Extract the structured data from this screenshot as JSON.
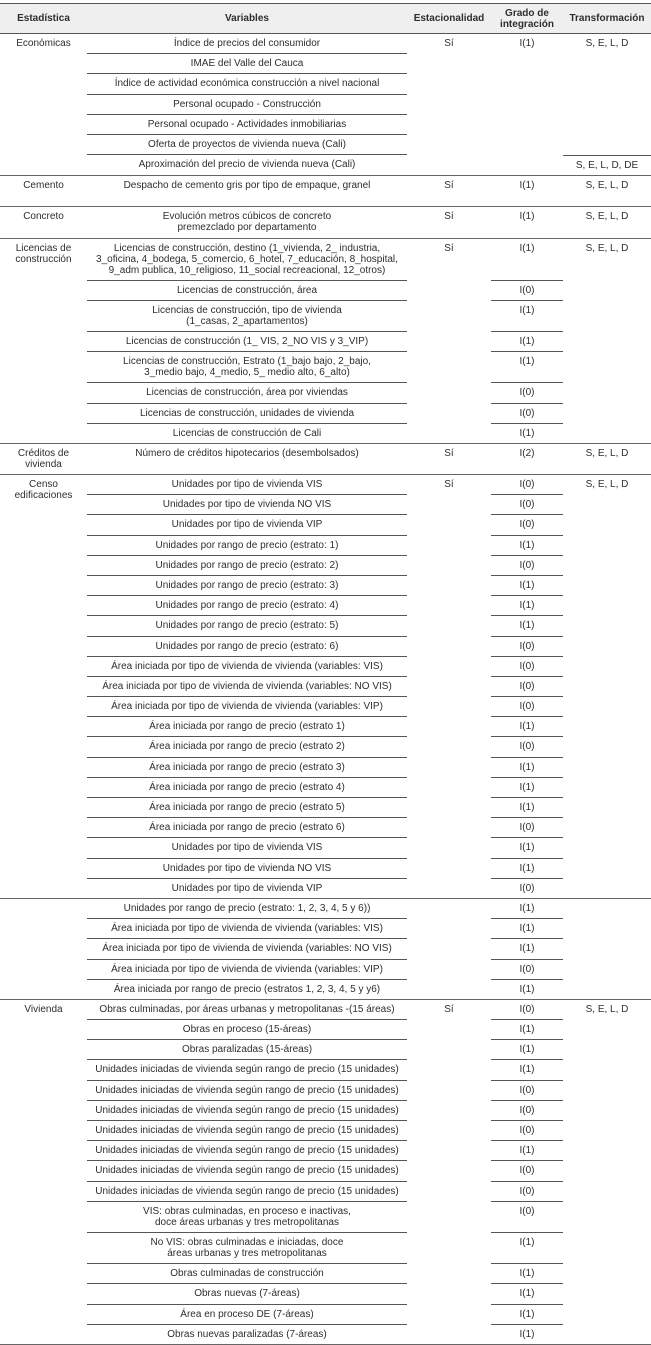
{
  "header": {
    "estadistica": "Estadística",
    "variables": "Variables",
    "estacionalidad": "Estacionalidad",
    "integracion": "Grado de\nintegración",
    "transformacion": "Transformación"
  },
  "groups": [
    {
      "label": "Económicas",
      "seasonality": "Sí",
      "rows": [
        {
          "variable": "Índice de precios del consumidor",
          "integration": "I(1)",
          "transformation": "S, E, L, D"
        },
        {
          "variable": "IMAE del Valle del Cauca"
        },
        {
          "variable": "Índice de actividad económica construcción a nivel nacional"
        },
        {
          "variable": "Personal ocupado - Construcción"
        },
        {
          "variable": "Personal ocupado - Actividades inmobiliarias"
        },
        {
          "variable": "Oferta de proyectos de vivienda nueva (Cali)"
        },
        {
          "variable": "Aproximación del precio de vivienda nueva (Cali)",
          "transformation": "S, E, L, D, DE"
        }
      ]
    },
    {
      "label": "Cemento",
      "seasonality": "Sí",
      "rows": [
        {
          "variable": "Despacho de cemento gris por tipo de empaque, granel",
          "integration": "I(1)",
          "transformation": "S, E, L, D"
        }
      ]
    },
    {
      "label": "Concreto",
      "seasonality": "Sí",
      "rows": [
        {
          "variable": "Evolución metros cúbicos de concreto\npremezclado por departamento",
          "integration": "I(1)",
          "transformation": "S, E, L, D"
        }
      ]
    },
    {
      "label": "Licencias de\nconstrucción",
      "seasonality": "Sí",
      "rows": [
        {
          "variable": "Licencias de construcción, destino (1_vivienda, 2_ industria,\n3_oficina, 4_bodega, 5_comercio, 6_hotel, 7_educación, 8_hospital,\n9_adm publica, 10_religioso, 11_social recreacional, 12_otros)",
          "integration": "I(1)",
          "transformation": "S, E, L, D"
        },
        {
          "variable": "Licencias de construcción, área",
          "integration": "I(0)"
        },
        {
          "variable": "Licencias de construcción, tipo de vivienda\n(1_casas, 2_apartamentos)",
          "integration": "I(1)"
        },
        {
          "variable": "Licencias de construcción (1_ VIS, 2_NO VIS y 3_VIP)",
          "integration": "I(1)"
        },
        {
          "variable": "Licencias de construcción, Estrato (1_bajo bajo, 2_bajo,\n3_medio bajo, 4_medio, 5_ medio alto, 6_alto)",
          "integration": "I(1)"
        },
        {
          "variable": "Licencias de construcción, área por viviendas",
          "integration": "I(0)"
        },
        {
          "variable": "Licencias de construcción, unidades de vivienda",
          "integration": "I(0)"
        },
        {
          "variable": "Licencias de construcción de Cali",
          "integration": "I(1)"
        }
      ]
    },
    {
      "label": "Créditos de\nvivienda",
      "seasonality": "Sí",
      "rows": [
        {
          "variable": "Número de créditos hipotecarios (desembolsados)",
          "integration": "I(2)",
          "transformation": "S, E, L, D"
        }
      ]
    },
    {
      "label": "Censo\nedificaciones",
      "seasonality": "Sí",
      "rows": [
        {
          "variable": "Unidades por tipo de vivienda VIS",
          "integration": "I(0)",
          "transformation": "S, E, L, D"
        },
        {
          "variable": "Unidades por tipo de vivienda NO VIS",
          "integration": "I(0)"
        },
        {
          "variable": "Unidades por tipo de vivienda VIP",
          "integration": "I(0)"
        },
        {
          "variable": "Unidades por rango de precio (estrato: 1)",
          "integration": "I(1)"
        },
        {
          "variable": "Unidades por rango de precio (estrato: 2)",
          "integration": "I(0)"
        },
        {
          "variable": "Unidades por rango de precio (estrato: 3)",
          "integration": "I(1)"
        },
        {
          "variable": "Unidades por rango de precio (estrato: 4)",
          "integration": "I(1)"
        },
        {
          "variable": "Unidades por rango de precio (estrato: 5)",
          "integration": "I(1)"
        },
        {
          "variable": "Unidades por rango de precio (estrato: 6)",
          "integration": "I(0)"
        },
        {
          "variable": "Área iniciada por tipo de vivienda de vivienda (variables: VIS)",
          "integration": "I(0)"
        },
        {
          "variable": "Área iniciada por tipo de vivienda de vivienda (variables: NO VIS)",
          "integration": "I(0)"
        },
        {
          "variable": "Área iniciada por tipo de vivienda de vivienda (variables: VIP)",
          "integration": "I(0)"
        },
        {
          "variable": "Área iniciada por rango de precio (estrato 1)",
          "integration": "I(1)"
        },
        {
          "variable": "Área iniciada por rango de precio (estrato 2)",
          "integration": "I(0)"
        },
        {
          "variable": "Área iniciada por rango de precio (estrato 3)",
          "integration": "I(1)"
        },
        {
          "variable": "Área iniciada por rango de precio (estrato 4)",
          "integration": "I(1)"
        },
        {
          "variable": "Área iniciada por rango de precio (estrato 5)",
          "integration": "I(1)"
        },
        {
          "variable": "Área iniciada por rango de precio (estrato 6)",
          "integration": "I(0)"
        },
        {
          "variable": "Unidades por tipo de vivienda VIS",
          "integration": "I(1)"
        },
        {
          "variable": "Unidades por tipo de vivienda NO VIS",
          "integration": "I(1)"
        },
        {
          "variable": "Unidades por tipo de vivienda VIP",
          "integration": "I(0)"
        }
      ]
    },
    {
      "label": "",
      "seasonality": "",
      "rows": [
        {
          "variable": "Unidades por rango de precio (estrato: 1, 2, 3, 4, 5 y 6))",
          "integration": "I(1)"
        },
        {
          "variable": "Área iniciada por tipo de vivienda de vivienda (variables: VIS)",
          "integration": "I(1)"
        },
        {
          "variable": "Área iniciada por tipo de vivienda de vivienda (variables: NO VIS)",
          "integration": "I(1)"
        },
        {
          "variable": "Área iniciada por tipo de vivienda de vivienda (variables: VIP)",
          "integration": "I(0)"
        },
        {
          "variable": "Área iniciada por rango de precio (estratos 1, 2, 3, 4, 5 y y6)",
          "integration": "I(1)"
        }
      ]
    },
    {
      "label": "Vivienda",
      "seasonality": "Sí",
      "rows": [
        {
          "variable": "Obras culminadas, por áreas urbanas y metropolitanas -(15 áreas)",
          "integration": "I(0)",
          "transformation": "S, E, L, D"
        },
        {
          "variable": "Obras en proceso (15-áreas)",
          "integration": "I(1)"
        },
        {
          "variable": "Obras paralizadas (15-áreas)",
          "integration": "I(1)"
        },
        {
          "variable": "Unidades iniciadas de vivienda según rango de precio (15 unidades)",
          "integration": "I(1)"
        },
        {
          "variable": "Unidades iniciadas de vivienda según rango de precio (15 unidades)",
          "integration": "I(0)"
        },
        {
          "variable": "Unidades iniciadas de vivienda según rango de precio (15 unidades)",
          "integration": "I(0)"
        },
        {
          "variable": "Unidades iniciadas de vivienda según rango de precio (15 unidades)",
          "integration": "I(0)"
        },
        {
          "variable": "Unidades iniciadas de vivienda según rango de precio (15 unidades)",
          "integration": "I(1)"
        },
        {
          "variable": "Unidades iniciadas de vivienda según rango de precio (15 unidades)",
          "integration": "I(0)"
        },
        {
          "variable": "Unidades iniciadas de vivienda según rango de precio (15 unidades)",
          "integration": "I(0)"
        },
        {
          "variable": "VIS: obras culminadas, en proceso e inactivas,\ndoce áreas urbanas y tres metropolitanas",
          "integration": "I(0)"
        },
        {
          "variable": "No VIS: obras culminadas e iniciadas, doce\náreas urbanas y tres metropolitanas",
          "integration": "I(1)"
        },
        {
          "variable": "Obras culminadas de construcción",
          "integration": "I(1)"
        },
        {
          "variable": "Obras nuevas (7-áreas)",
          "integration": "I(1)"
        },
        {
          "variable": "Área en proceso DE (7-áreas)",
          "integration": "I(1)"
        },
        {
          "variable": "Obras nuevas paralizadas (7-áreas)",
          "integration": "I(1)"
        }
      ]
    }
  ]
}
